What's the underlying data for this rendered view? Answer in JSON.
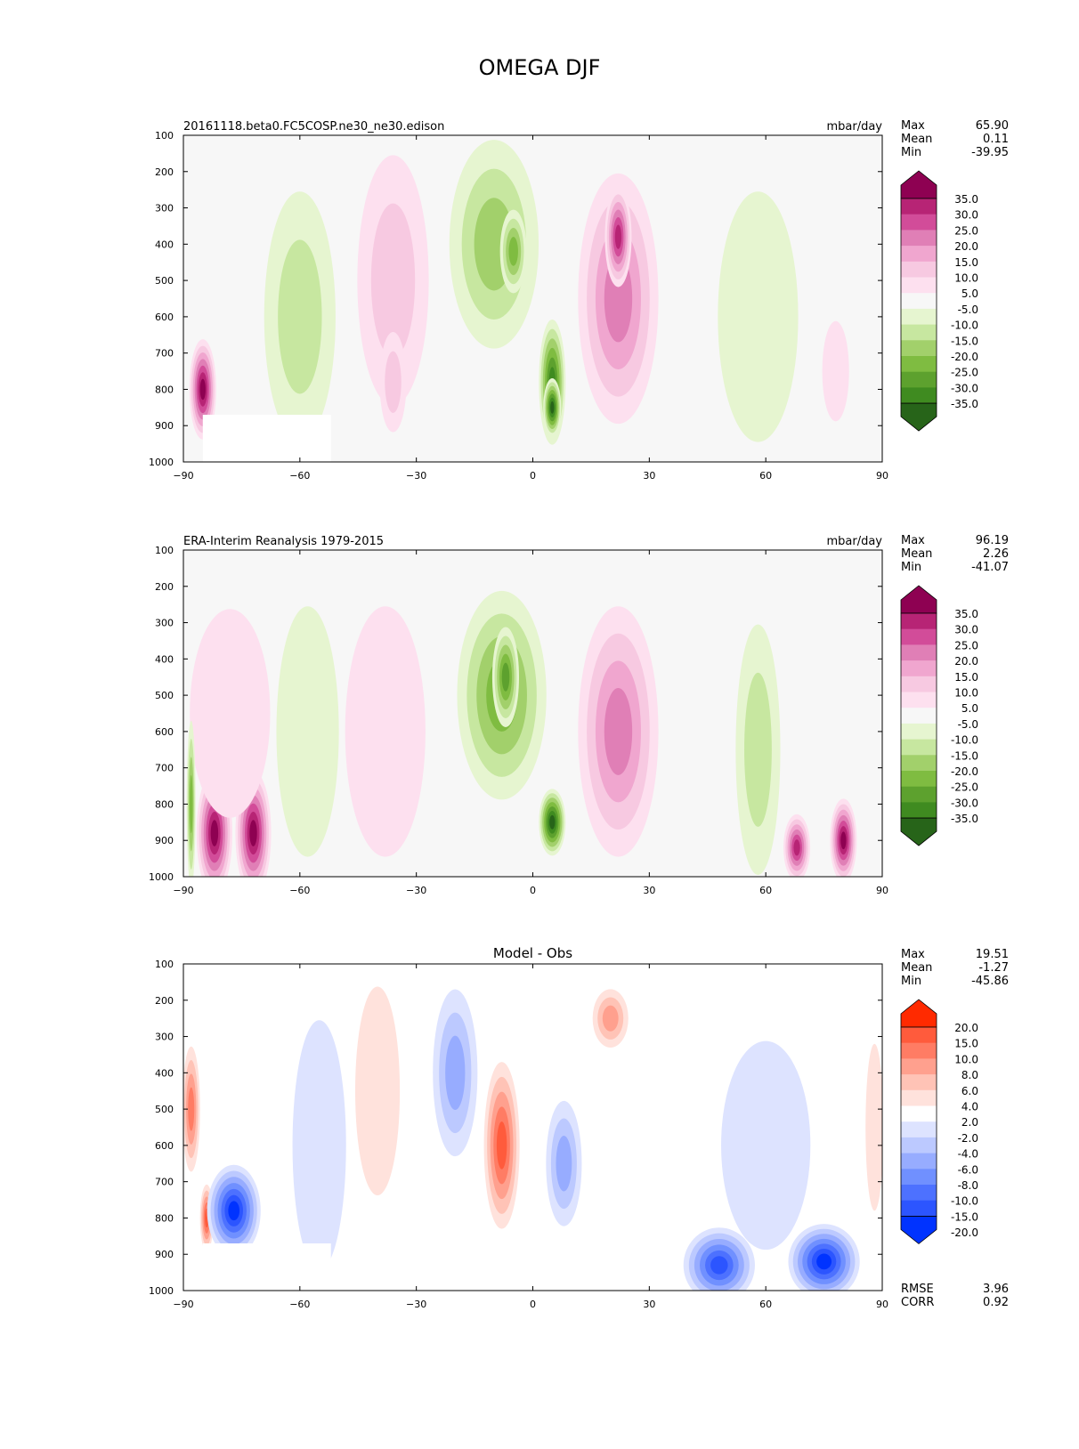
{
  "figure": {
    "title": "OMEGA DJF"
  },
  "colors": {
    "pink_green": [
      "#276419",
      "#3f8b20",
      "#5da12e",
      "#7fbc41",
      "#a2d06b",
      "#c7e7a0",
      "#e6f5d0",
      "#f7f7f7",
      "#fde0ef",
      "#f7c9e1",
      "#f0a6cf",
      "#e07fb6",
      "#d24c99",
      "#b72475",
      "#8e0152"
    ],
    "blue_red": [
      "#0033ff",
      "#2c55ff",
      "#4d71ff",
      "#7090ff",
      "#97acff",
      "#bcc9ff",
      "#dde3ff",
      "#ffffff",
      "#ffe2dc",
      "#ffc3b6",
      "#ffa08e",
      "#ff7c64",
      "#ff5b3c",
      "#ff2a00"
    ]
  },
  "chart_data": [
    {
      "type": "contour",
      "title": "20161118.beta0.FC5COSP.ne30_ne30.edison",
      "units": "mbar/day",
      "xlabel": "",
      "ylabel": "",
      "xlim": [
        -90,
        90
      ],
      "ylim": [
        1000,
        100
      ],
      "xticks": [
        "−90",
        "−60",
        "−30",
        "0",
        "30",
        "60",
        "90"
      ],
      "yticks": [
        "100",
        "200",
        "300",
        "400",
        "500",
        "600",
        "700",
        "800",
        "900",
        "1000"
      ],
      "stats": [
        {
          "label": "Max",
          "value": "65.90"
        },
        {
          "label": "Mean",
          "value": "0.11"
        },
        {
          "label": "Min",
          "value": "-39.95"
        }
      ],
      "colorbar": {
        "palette": "pink_green",
        "labels": [
          "35.0",
          "30.0",
          "25.0",
          "20.0",
          "15.0",
          "10.0",
          "5.0",
          "-5.0",
          "-10.0",
          "-15.0",
          "-20.0",
          "-25.0",
          "-30.0",
          "-35.0"
        ]
      },
      "features": [
        {
          "lat": -85,
          "p": 800,
          "value": 45,
          "wlat": 3,
          "wp": 120
        },
        {
          "lat": -60,
          "p": 600,
          "value": -12,
          "wlat": 8,
          "wp": 300
        },
        {
          "lat": -36,
          "p": 500,
          "value": 11,
          "wlat": 8,
          "wp": 300
        },
        {
          "lat": -36,
          "p": 780,
          "value": 14,
          "wlat": 3,
          "wp": 120
        },
        {
          "lat": -10,
          "p": 400,
          "value": -17,
          "wlat": 10,
          "wp": 250
        },
        {
          "lat": -5,
          "p": 420,
          "value": -24,
          "wlat": 3,
          "wp": 100
        },
        {
          "lat": 5,
          "p": 780,
          "value": -30,
          "wlat": 3,
          "wp": 150
        },
        {
          "lat": 5,
          "p": 850,
          "value": -40,
          "wlat": 2,
          "wp": 70
        },
        {
          "lat": 22,
          "p": 550,
          "value": 24,
          "wlat": 9,
          "wp": 300
        },
        {
          "lat": 22,
          "p": 380,
          "value": 31,
          "wlat": 3,
          "wp": 120
        },
        {
          "lat": 58,
          "p": 600,
          "value": -8,
          "wlat": 9,
          "wp": 300
        },
        {
          "lat": 78,
          "p": 750,
          "value": 7,
          "wlat": 3,
          "wp": 120
        }
      ]
    },
    {
      "type": "contour",
      "title": "ERA-Interim Reanalysis 1979-2015",
      "units": "mbar/day",
      "xlabel": "",
      "ylabel": "",
      "xlim": [
        -90,
        90
      ],
      "ylim": [
        1000,
        100
      ],
      "xticks": [
        "−90",
        "−60",
        "−30",
        "0",
        "30",
        "60",
        "90"
      ],
      "yticks": [
        "100",
        "200",
        "300",
        "400",
        "500",
        "600",
        "700",
        "800",
        "900",
        "1000"
      ],
      "stats": [
        {
          "label": "Max",
          "value": "96.19"
        },
        {
          "label": "Mean",
          "value": "2.26"
        },
        {
          "label": "Min",
          "value": "-41.07"
        }
      ],
      "colorbar": {
        "palette": "pink_green",
        "labels": [
          "35.0",
          "30.0",
          "25.0",
          "20.0",
          "15.0",
          "10.0",
          "5.0",
          "-5.0",
          "-10.0",
          "-15.0",
          "-20.0",
          "-25.0",
          "-30.0",
          "-35.0"
        ]
      },
      "features": [
        {
          "lat": -82,
          "p": 880,
          "value": 45,
          "wlat": 4,
          "wp": 150
        },
        {
          "lat": -72,
          "p": 880,
          "value": 42,
          "wlat": 4,
          "wp": 150
        },
        {
          "lat": -78,
          "p": 550,
          "value": 8,
          "wlat": 9,
          "wp": 250
        },
        {
          "lat": -88,
          "p": 800,
          "value": -20,
          "wlat": 1,
          "wp": 200
        },
        {
          "lat": -58,
          "p": 600,
          "value": -9,
          "wlat": 7,
          "wp": 300
        },
        {
          "lat": -38,
          "p": 600,
          "value": 10,
          "wlat": 9,
          "wp": 300
        },
        {
          "lat": -8,
          "p": 500,
          "value": -22,
          "wlat": 10,
          "wp": 250
        },
        {
          "lat": -7,
          "p": 450,
          "value": -28,
          "wlat": 3,
          "wp": 120
        },
        {
          "lat": 5,
          "p": 850,
          "value": -35,
          "wlat": 3,
          "wp": 80
        },
        {
          "lat": 22,
          "p": 600,
          "value": 23,
          "wlat": 9,
          "wp": 300
        },
        {
          "lat": 58,
          "p": 650,
          "value": -10,
          "wlat": 5,
          "wp": 300
        },
        {
          "lat": 68,
          "p": 920,
          "value": 35,
          "wlat": 3,
          "wp": 80
        },
        {
          "lat": 80,
          "p": 900,
          "value": 40,
          "wlat": 3,
          "wp": 100
        }
      ]
    },
    {
      "type": "contour",
      "title": "Model - Obs",
      "units": "",
      "xlabel": "",
      "ylabel": "",
      "xlim": [
        -90,
        90
      ],
      "ylim": [
        1000,
        100
      ],
      "xticks": [
        "−90",
        "−60",
        "−30",
        "0",
        "30",
        "60",
        "90"
      ],
      "yticks": [
        "100",
        "200",
        "300",
        "400",
        "500",
        "600",
        "700",
        "800",
        "900",
        "1000"
      ],
      "stats": [
        {
          "label": "Max",
          "value": "19.51"
        },
        {
          "label": "Mean",
          "value": "-1.27"
        },
        {
          "label": "Min",
          "value": "-45.86"
        }
      ],
      "bottom_stats": [
        {
          "label": "RMSE",
          "value": "3.96"
        },
        {
          "label": "CORR",
          "value": "0.92"
        }
      ],
      "colorbar": {
        "palette": "blue_red",
        "labels": [
          "20.0",
          "15.0",
          "10.0",
          "8.0",
          "6.0",
          "4.0",
          "2.0",
          "-2.0",
          "-4.0",
          "-6.0",
          "-8.0",
          "-10.0",
          "-15.0",
          "-20.0"
        ]
      },
      "features": [
        {
          "lat": -88,
          "p": 500,
          "value": 9,
          "wlat": 2,
          "wp": 150
        },
        {
          "lat": -84,
          "p": 800,
          "value": 14,
          "wlat": 1.5,
          "wp": 80
        },
        {
          "lat": -77,
          "p": 780,
          "value": -22,
          "wlat": 6,
          "wp": 110
        },
        {
          "lat": -55,
          "p": 600,
          "value": -3,
          "wlat": 6,
          "wp": 300
        },
        {
          "lat": -40,
          "p": 450,
          "value": 3,
          "wlat": 5,
          "wp": 250
        },
        {
          "lat": -20,
          "p": 400,
          "value": -7,
          "wlat": 5,
          "wp": 200
        },
        {
          "lat": -8,
          "p": 600,
          "value": 11,
          "wlat": 4,
          "wp": 200
        },
        {
          "lat": 8,
          "p": 650,
          "value": -6,
          "wlat": 4,
          "wp": 150
        },
        {
          "lat": 20,
          "p": 250,
          "value": 7,
          "wlat": 4,
          "wp": 70
        },
        {
          "lat": 48,
          "p": 930,
          "value": -18,
          "wlat": 8,
          "wp": 90
        },
        {
          "lat": 75,
          "p": 920,
          "value": -22,
          "wlat": 8,
          "wp": 90
        },
        {
          "lat": 60,
          "p": 600,
          "value": -3,
          "wlat": 10,
          "wp": 250
        },
        {
          "lat": 88,
          "p": 550,
          "value": 4,
          "wlat": 2,
          "wp": 200
        }
      ]
    }
  ]
}
